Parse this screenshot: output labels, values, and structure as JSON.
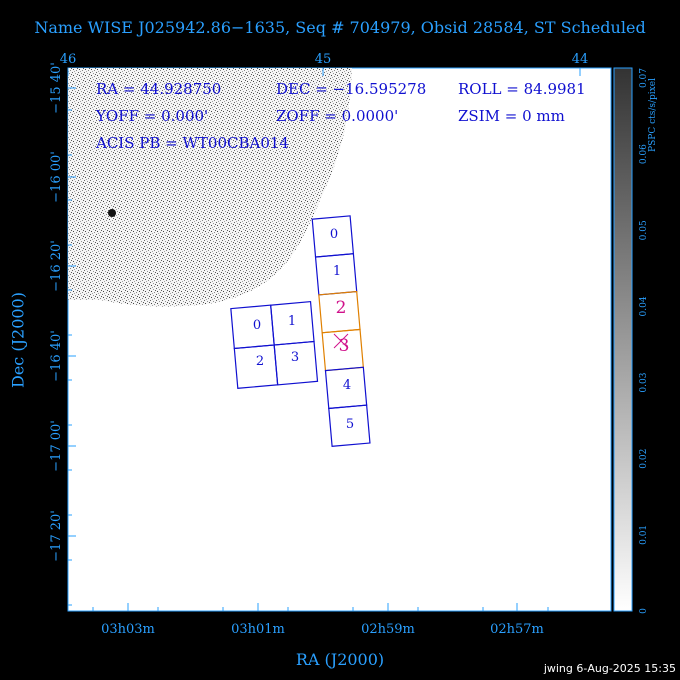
{
  "title": "Name WISE J025942.86−1635, Seq # 704979, Obsid 28584, ST Scheduled",
  "footer": "jwing  6‑Aug‑2025 15:35",
  "info": {
    "ra": "RA = 44.928750",
    "dec": "DEC = −16.595278",
    "roll": "ROLL = 84.9981",
    "yoff": "YOFF =  0.000'",
    "zoff": "ZOFF = 0.0000'",
    "zsim": "ZSIM = 0 mm",
    "acis": "ACIS PB = WT00CBA014"
  },
  "chart_data": {
    "type": "scatter",
    "xlabel": "RA (J2000)",
    "ylabel": "Dec (J2000)",
    "top_ticks": [
      "46",
      "45",
      "44"
    ],
    "bottom_ticks": [
      "03h03m",
      "03h01m",
      "02h59m",
      "02h57m"
    ],
    "left_ticks": [
      "−15 40'",
      "−16 00'",
      "−16 20'",
      "−16 40'",
      "−17 00'",
      "−17 20'"
    ],
    "colorbar": {
      "label": "PSPC cts/s/pixel",
      "ticks": [
        "0",
        "0.01",
        "0.02",
        "0.03",
        "0.04",
        "0.05",
        "0.06",
        "0.07"
      ]
    },
    "acis_i_chips": [
      "0",
      "1",
      "2",
      "3"
    ],
    "acis_s_chips": [
      "0",
      "1",
      "2",
      "3",
      "4",
      "5"
    ],
    "colors": {
      "text": "#2aa0ff",
      "chip_label": "#1010d0",
      "highlight": "#e08000",
      "target": "#d0108a"
    }
  }
}
